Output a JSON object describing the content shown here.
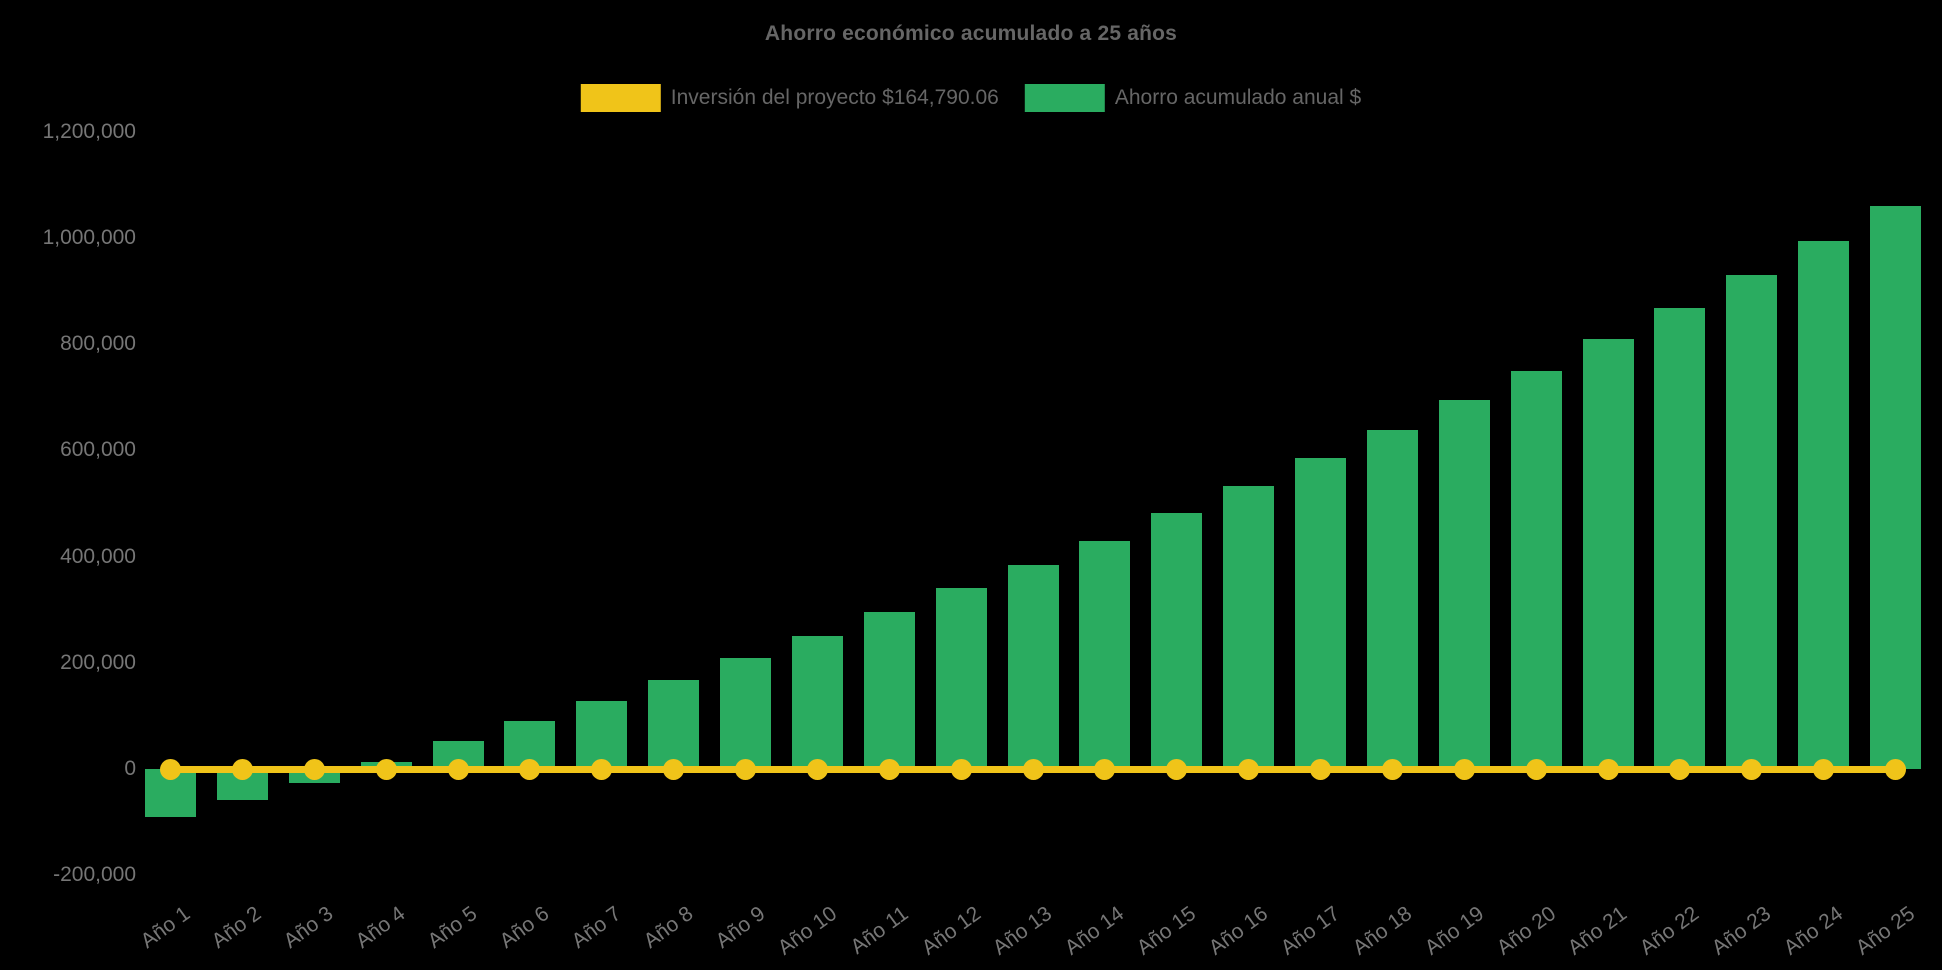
{
  "title": "Ahorro económico acumulado a 25 años",
  "legend": [
    {
      "label": "Inversión del proyecto $164,790.06",
      "color": "#f0c419",
      "series_type": "line"
    },
    {
      "label": "Ahorro acumulado anual $",
      "color": "#2aac60",
      "series_type": "bar"
    }
  ],
  "colors": {
    "background": "#000000",
    "bar_green": "#2aac60",
    "line_yellow": "#f0c419",
    "title_text": "#666666",
    "axis_text": "#767676"
  },
  "chart_data": {
    "type": "bar",
    "title": "Ahorro económico acumulado a 25 años",
    "categories": [
      "Año 1",
      "Año 2",
      "Año 3",
      "Año 4",
      "Año 5",
      "Año 6",
      "Año 7",
      "Año 8",
      "Año 9",
      "Año 10",
      "Año 11",
      "Año 12",
      "Año 13",
      "Año 14",
      "Año 15",
      "Año 16",
      "Año 17",
      "Año 18",
      "Año 19",
      "Año 20",
      "Año 21",
      "Año 22",
      "Año 23",
      "Año 24",
      "Año 25"
    ],
    "series": [
      {
        "name": "Ahorro acumulado anual $",
        "type": "bar",
        "color": "#2aac60",
        "values": [
          -91000,
          -58000,
          -26000,
          13000,
          52000,
          90000,
          129000,
          167000,
          209000,
          251000,
          295000,
          340000,
          384000,
          430000,
          482000,
          533000,
          585000,
          638000,
          694000,
          750000,
          809000,
          869000,
          931000,
          995000,
          1060000
        ]
      },
      {
        "name": "Inversión del proyecto $164,790.06",
        "type": "line",
        "color": "#f0c419",
        "point_markers": true,
        "rendered_level": 0,
        "values": [
          0,
          0,
          0,
          0,
          0,
          0,
          0,
          0,
          0,
          0,
          0,
          0,
          0,
          0,
          0,
          0,
          0,
          0,
          0,
          0,
          0,
          0,
          0,
          0,
          0
        ]
      }
    ],
    "xlabel": "",
    "ylabel": "",
    "ylim": [
      -200000,
      1200000
    ],
    "y_ticks": [
      {
        "value": 1200000,
        "label": "1,200,000"
      },
      {
        "value": 1000000,
        "label": "1,000,000"
      },
      {
        "value": 800000,
        "label": "800,000"
      },
      {
        "value": 600000,
        "label": "600,000"
      },
      {
        "value": 400000,
        "label": "400,000"
      },
      {
        "value": 200000,
        "label": "200,000"
      },
      {
        "value": 0,
        "label": "0"
      },
      {
        "value": -200000,
        "label": "-200,000"
      }
    ],
    "grid": false,
    "legend_position": "top",
    "x_tick_rotation_deg": -36
  }
}
